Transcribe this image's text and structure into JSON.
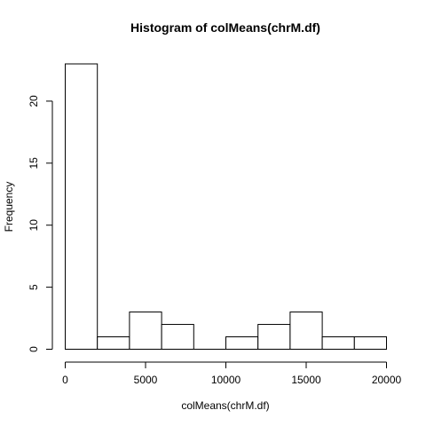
{
  "chart_data": {
    "type": "bar",
    "title": "Histogram of colMeans(chrM.df)",
    "xlabel": "colMeans(chrM.df)",
    "ylabel": "Frequency",
    "bins": [
      {
        "from": 0,
        "to": 2000,
        "count": 23
      },
      {
        "from": 2000,
        "to": 4000,
        "count": 1
      },
      {
        "from": 4000,
        "to": 6000,
        "count": 3
      },
      {
        "from": 6000,
        "to": 8000,
        "count": 2
      },
      {
        "from": 8000,
        "to": 10000,
        "count": 0
      },
      {
        "from": 10000,
        "to": 12000,
        "count": 1
      },
      {
        "from": 12000,
        "to": 14000,
        "count": 2
      },
      {
        "from": 14000,
        "to": 16000,
        "count": 3
      },
      {
        "from": 16000,
        "to": 18000,
        "count": 1
      },
      {
        "from": 18000,
        "to": 20000,
        "count": 1
      }
    ],
    "xlim": [
      0,
      20000
    ],
    "ylim": [
      0,
      23
    ],
    "x_ticks": [
      0,
      5000,
      10000,
      15000,
      20000
    ],
    "y_ticks": [
      0,
      5,
      10,
      15,
      20
    ],
    "grid": false,
    "bar_fill": "#ffffff",
    "bar_stroke": "#000000"
  }
}
